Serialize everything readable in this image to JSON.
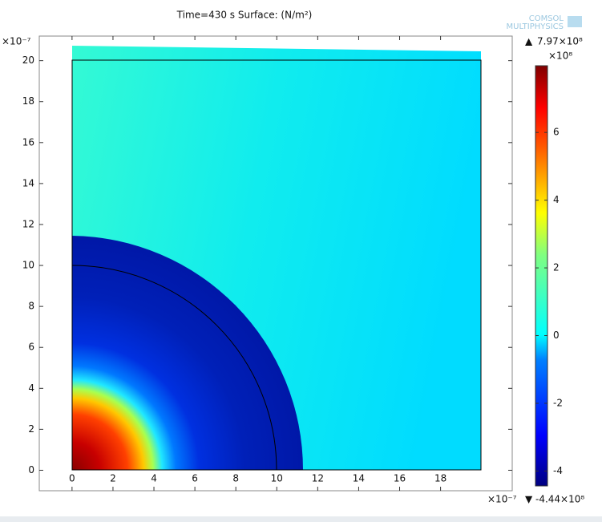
{
  "chart_data": {
    "type": "surface",
    "title": "Time=430 s   Surface:  (N/m²)",
    "logo": [
      "COMSOL",
      "MULTIPHYSICS"
    ],
    "x_multiplier": "×10⁻⁷",
    "y_multiplier": "×10⁻⁷",
    "xlim": [
      -1.6,
      21.5
    ],
    "xticks": [
      0,
      2,
      4,
      6,
      8,
      10,
      12,
      14,
      16,
      18
    ],
    "ylim": [
      -1.0,
      21.2
    ],
    "yticks": [
      0,
      2,
      4,
      6,
      8,
      10,
      12,
      14,
      16,
      18,
      20
    ],
    "colorbar": {
      "multiplier": "×10⁸",
      "lim": [
        -4.44,
        7.97
      ],
      "ticks": [
        -4,
        -2,
        0,
        2,
        4,
        6
      ],
      "max": {
        "value": 7.97,
        "label": "7.97×10⁸"
      },
      "min": {
        "value": -4.44,
        "label": "-4.44×10⁸"
      }
    }
  }
}
